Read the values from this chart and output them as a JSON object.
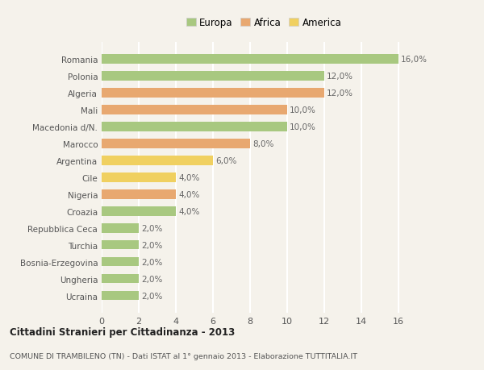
{
  "categories": [
    "Romania",
    "Polonia",
    "Algeria",
    "Mali",
    "Macedonia d/N.",
    "Marocco",
    "Argentina",
    "Cile",
    "Nigeria",
    "Croazia",
    "Repubblica Ceca",
    "Turchia",
    "Bosnia-Erzegovina",
    "Ungheria",
    "Ucraina"
  ],
  "values": [
    16.0,
    12.0,
    12.0,
    10.0,
    10.0,
    8.0,
    6.0,
    4.0,
    4.0,
    4.0,
    2.0,
    2.0,
    2.0,
    2.0,
    2.0
  ],
  "continents": [
    "Europa",
    "Europa",
    "Africa",
    "Africa",
    "Europa",
    "Africa",
    "America",
    "America",
    "Africa",
    "Europa",
    "Europa",
    "Europa",
    "Europa",
    "Europa",
    "Europa"
  ],
  "colors": {
    "Europa": "#a8c880",
    "Africa": "#e8a870",
    "America": "#f0d060"
  },
  "bar_labels": [
    "16,0%",
    "12,0%",
    "12,0%",
    "10,0%",
    "10,0%",
    "8,0%",
    "6,0%",
    "4,0%",
    "4,0%",
    "4,0%",
    "2,0%",
    "2,0%",
    "2,0%",
    "2,0%",
    "2,0%"
  ],
  "xlim": [
    0,
    17.5
  ],
  "xticks": [
    0,
    2,
    4,
    6,
    8,
    10,
    12,
    14,
    16
  ],
  "title": "Cittadini Stranieri per Cittadinanza - 2013",
  "subtitle": "COMUNE DI TRAMBILENO (TN) - Dati ISTAT al 1° gennaio 2013 - Elaborazione TUTTITALIA.IT",
  "legend_labels": [
    "Europa",
    "Africa",
    "America"
  ],
  "background_color": "#f5f2eb",
  "grid_color": "#ffffff",
  "bar_label_color": "#666666",
  "tick_label_color": "#555555"
}
